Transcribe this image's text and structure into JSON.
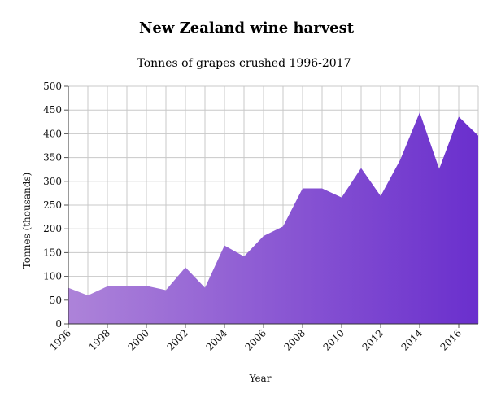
{
  "chart_data": {
    "type": "area",
    "title": "New Zealand wine harvest",
    "subtitle": "Tonnes of grapes crushed 1996-2017",
    "xlabel": "Year",
    "ylabel": "Tonnes (thousands)",
    "ylim": [
      0,
      500
    ],
    "xlim": [
      1996,
      2017
    ],
    "yticks": [
      0,
      50,
      100,
      150,
      200,
      250,
      300,
      350,
      400,
      450,
      500
    ],
    "xticks": [
      "1996",
      "1998",
      "2000",
      "2002",
      "2004",
      "2006",
      "2008",
      "2010",
      "2012",
      "2014",
      "2016"
    ],
    "grid": true,
    "x": [
      1996,
      1997,
      1998,
      1999,
      2000,
      2001,
      2002,
      2003,
      2004,
      2005,
      2006,
      2007,
      2008,
      2009,
      2010,
      2011,
      2012,
      2013,
      2014,
      2015,
      2016,
      2017
    ],
    "values": [
      76,
      60,
      79,
      80,
      80,
      71,
      119,
      76,
      165,
      142,
      185,
      205,
      285,
      285,
      266,
      328,
      269,
      345,
      445,
      326,
      436,
      396
    ],
    "fill_gradient": [
      "#ad83d9",
      "#6a2fcd"
    ]
  }
}
